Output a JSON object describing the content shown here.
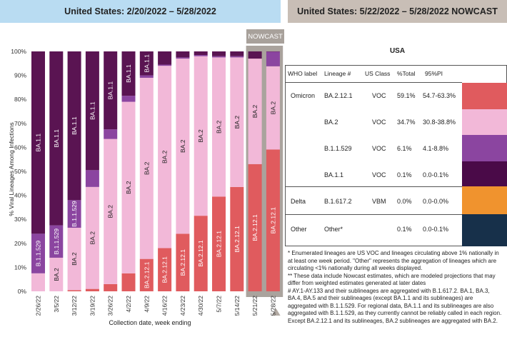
{
  "header": {
    "left_title": "United States: 2/20/2022 – 5/28/2022",
    "right_title": "United States: 5/22/2022 – 5/28/2022 NOWCAST"
  },
  "chart_data": {
    "type": "bar",
    "stacked": true,
    "nowcast_label": "NOWCAST",
    "ylabel": "% Viral Lineages Among Infections",
    "xlabel": "Collection date, week ending",
    "ylim": [
      0,
      100
    ],
    "y_ticks": [
      "0%",
      "10%",
      "20%",
      "30%",
      "40%",
      "50%",
      "60%",
      "70%",
      "80%",
      "90%",
      "100%"
    ],
    "categories": [
      "2/26/22",
      "3/5/22",
      "3/12/22",
      "3/19/22",
      "3/26/22",
      "4/2/22",
      "4/9/22",
      "4/16/22",
      "4/23/22",
      "4/30/22",
      "5/7/22",
      "5/14/22",
      "5/21/22",
      "5/28/22"
    ],
    "nowcast_categories": [
      "5/21/22",
      "5/28/22"
    ],
    "series": [
      {
        "name": "BA.2.12.1",
        "color": "#e05b5e",
        "values": [
          0,
          0,
          0.5,
          1,
          3,
          7.5,
          13.5,
          18,
          24,
          31.5,
          39.5,
          43.5,
          53,
          59.1
        ]
      },
      {
        "name": "BA.2",
        "color": "#f2b8d8",
        "values": [
          7.5,
          14,
          26,
          42.5,
          60.5,
          71.5,
          75.5,
          76,
          73,
          66.5,
          58,
          54,
          44,
          34.7
        ]
      },
      {
        "name": "B.1.1.529",
        "color": "#8b45a0",
        "values": [
          16.5,
          13.5,
          11.5,
          7,
          4,
          2.5,
          1,
          0.5,
          0.5,
          0.5,
          0.5,
          0.5,
          0,
          6.1
        ]
      },
      {
        "name": "BA.1.1",
        "color": "#5a1452",
        "values": [
          76,
          72.5,
          62,
          49.5,
          32.5,
          18.5,
          10,
          5.5,
          2.5,
          1.5,
          2,
          2,
          3,
          0.1
        ]
      }
    ],
    "bar_labels": [
      {
        "col": 0,
        "series": "BA.1.1",
        "text": "BA.1.1"
      },
      {
        "col": 0,
        "series": "B.1.1.529",
        "text": "B.1.1.529"
      },
      {
        "col": 1,
        "series": "BA.1.1",
        "text": "BA.1.1"
      },
      {
        "col": 1,
        "series": "B.1.1.529",
        "text": "B.1.1.529"
      },
      {
        "col": 1,
        "series": "BA.2",
        "text": "BA.2"
      },
      {
        "col": 2,
        "series": "BA.1.1",
        "text": "BA.1.1"
      },
      {
        "col": 2,
        "series": "B.1.1.529",
        "text": "B.1.1.529"
      },
      {
        "col": 2,
        "series": "BA.2",
        "text": "BA.2"
      },
      {
        "col": 3,
        "series": "BA.1.1",
        "text": "BA.1.1"
      },
      {
        "col": 3,
        "series": "BA.2",
        "text": "BA.2"
      },
      {
        "col": 4,
        "series": "BA.1.1",
        "text": "BA.1.1"
      },
      {
        "col": 4,
        "series": "BA.2",
        "text": "BA.2"
      },
      {
        "col": 5,
        "series": "BA.1.1",
        "text": "BA.1.1"
      },
      {
        "col": 5,
        "series": "BA.2",
        "text": "BA.2"
      },
      {
        "col": 6,
        "series": "BA.1.1",
        "text": "BA.1.1"
      },
      {
        "col": 6,
        "series": "BA.2",
        "text": "BA.2"
      },
      {
        "col": 6,
        "series": "BA.2.12.1",
        "text": "BA.2.12.1"
      },
      {
        "col": 7,
        "series": "BA.2",
        "text": "BA.2"
      },
      {
        "col": 7,
        "series": "BA.2.12.1",
        "text": "BA.2.12.1"
      },
      {
        "col": 8,
        "series": "BA.2",
        "text": "BA.2"
      },
      {
        "col": 8,
        "series": "BA.2.12.1",
        "text": "BA.2.12.1"
      },
      {
        "col": 9,
        "series": "BA.2",
        "text": "BA.2"
      },
      {
        "col": 9,
        "series": "BA.2.12.1",
        "text": "BA.2.12.1"
      },
      {
        "col": 10,
        "series": "BA.2",
        "text": "BA.2"
      },
      {
        "col": 10,
        "series": "BA.2.12.1",
        "text": "BA.2.12.1"
      },
      {
        "col": 11,
        "series": "BA.2",
        "text": "BA.2"
      },
      {
        "col": 11,
        "series": "BA.2.12.1",
        "text": "BA.2.12.1"
      },
      {
        "col": 12,
        "series": "BA.2",
        "text": "BA.2"
      },
      {
        "col": 12,
        "series": "BA.2.12.1",
        "text": "BA.2.12.1"
      },
      {
        "col": 13,
        "series": "BA.2",
        "text": "BA.2"
      },
      {
        "col": 13,
        "series": "BA.2.12.1",
        "text": "BA.2.12.1"
      }
    ]
  },
  "table": {
    "title": "USA",
    "headers": {
      "who": "WHO label",
      "lineage": "Lineage #",
      "us_class": "US Class",
      "pct": "%Total",
      "pi": "95%PI"
    },
    "rows": [
      {
        "who": "Omicron",
        "lineage": "BA.2.12.1",
        "us_class": "VOC",
        "pct": "59.1%",
        "pi": "54.7-63.3%",
        "color": "#e05b5e"
      },
      {
        "who": "",
        "lineage": "BA.2",
        "us_class": "VOC",
        "pct": "34.7%",
        "pi": "30.8-38.8%",
        "color": "#f2b8d8"
      },
      {
        "who": "",
        "lineage": "B.1.1.529",
        "us_class": "VOC",
        "pct": "6.1%",
        "pi": "4.1-8.8%",
        "color": "#8b45a0"
      },
      {
        "who": "",
        "lineage": "BA.1.1",
        "us_class": "VOC",
        "pct": "0.1%",
        "pi": "0.0-0.1%",
        "color": "#4a0a48"
      },
      {
        "who": "Delta",
        "lineage": "B.1.617.2",
        "us_class": "VBM",
        "pct": "0.0%",
        "pi": "0.0-0.0%",
        "color": "#f0932e"
      },
      {
        "who": "Other",
        "lineage": "Other*",
        "us_class": "",
        "pct": "0.1%",
        "pi": "0.0-0.1%",
        "color": "#17304a"
      }
    ]
  },
  "footnotes": {
    "note1": "*      Enumerated lineages are US VOC and lineages circulating above 1% nationally in at least one week period. \"Other\" represents the aggregation of lineages which are circulating <1% nationally during all weeks displayed.",
    "note2": "**     These data include Nowcast estimates, which are modeled projections that may differ from weighted estimates generated at later dates",
    "note3": "#      AY.1-AY.133 and their sublineages are aggregated with B.1.617.2. BA.1, BA.3, BA.4, BA.5 and their sublineages (except BA.1.1 and its sublineages) are aggregated with B.1.1.529. For regional data, BA.1.1 and its sublineages are also aggregated with B.1.1.529, as they currently cannot be reliably called in each region. Except BA.2.12.1 and its sublineages, BA.2 sublineages are aggregated with BA.2."
  }
}
